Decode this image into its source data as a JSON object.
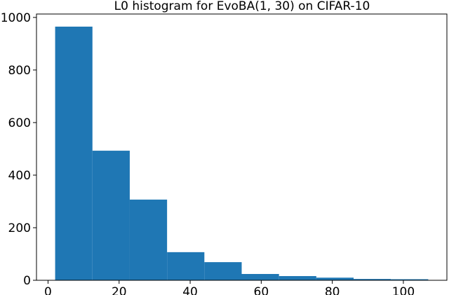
{
  "chart_data": {
    "type": "histogram",
    "title": "L0 histogram for EvoBA(1, 30) on CIFAR-10",
    "bins": [
      2,
      12.5,
      23,
      33.5,
      44,
      54.5,
      65,
      75.5,
      86,
      96.5,
      107
    ],
    "values": [
      965,
      493,
      307,
      107,
      69,
      24,
      16,
      10,
      5,
      4
    ],
    "color": "#1f77b4",
    "xlim": [
      -3.25,
      112.25
    ],
    "xticks": [
      0,
      20,
      40,
      60,
      80,
      100
    ],
    "ylim": [
      0,
      1013
    ],
    "yticks": [
      0,
      200,
      400,
      600,
      800,
      1000
    ]
  }
}
